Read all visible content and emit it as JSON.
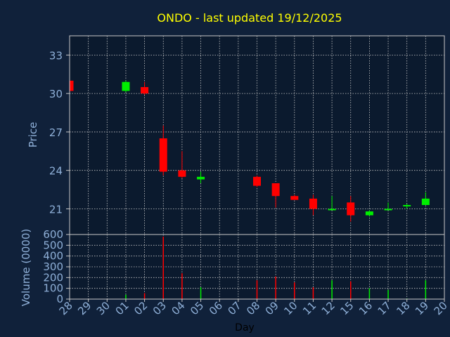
{
  "colors": {
    "background": "#10213a",
    "plot_background": "#0b1a2e",
    "grid": "#c8c8c8",
    "axis_text": "#8fb0d8",
    "title": "#ffff00",
    "up": "#00ee00",
    "down": "#ff0000"
  },
  "chart_data": [
    {
      "type": "candlestick",
      "title": "ONDO - last updated 19/12/2025",
      "ylabel": "Price",
      "ylim": [
        19,
        34.5
      ],
      "yticks": [
        "21",
        "24",
        "27",
        "30",
        "33"
      ],
      "grid": true,
      "x": [
        "28",
        "29",
        "30",
        "01",
        "02",
        "03",
        "04",
        "05",
        "06",
        "07",
        "08",
        "09",
        "10",
        "11",
        "12",
        "15",
        "16",
        "17",
        "18",
        "19",
        "20"
      ],
      "candles": [
        {
          "day": "28",
          "open": 31.0,
          "close": 30.2,
          "high": 31.0,
          "low": 30.2
        },
        {
          "day": "01",
          "open": 30.2,
          "close": 30.9,
          "high": 31.0,
          "low": 30.1
        },
        {
          "day": "02",
          "open": 30.5,
          "close": 30.0,
          "high": 30.9,
          "low": 29.9
        },
        {
          "day": "03",
          "open": 26.5,
          "close": 23.9,
          "high": 27.5,
          "low": 23.6
        },
        {
          "day": "04",
          "open": 24.0,
          "close": 23.5,
          "high": 25.5,
          "low": 23.4
        },
        {
          "day": "05",
          "open": 23.3,
          "close": 23.5,
          "high": 23.9,
          "low": 23.0
        },
        {
          "day": "08",
          "open": 23.5,
          "close": 22.8,
          "high": 23.6,
          "low": 22.7
        },
        {
          "day": "09",
          "open": 23.0,
          "close": 22.0,
          "high": 23.0,
          "low": 21.1
        },
        {
          "day": "10",
          "open": 22.0,
          "close": 21.7,
          "high": 22.1,
          "low": 21.7
        },
        {
          "day": "11",
          "open": 21.8,
          "close": 21.0,
          "high": 22.1,
          "low": 20.5
        },
        {
          "day": "12",
          "open": 20.9,
          "close": 21.0,
          "high": 22.0,
          "low": 20.9
        },
        {
          "day": "15",
          "open": 21.5,
          "close": 20.5,
          "high": 22.0,
          "low": 20.0
        },
        {
          "day": "16",
          "open": 20.5,
          "close": 20.8,
          "high": 20.9,
          "low": 20.4
        },
        {
          "day": "17",
          "open": 20.9,
          "close": 21.0,
          "high": 21.5,
          "low": 20.9
        },
        {
          "day": "18",
          "open": 21.2,
          "close": 21.3,
          "high": 21.4,
          "low": 21.0
        },
        {
          "day": "19",
          "open": 21.3,
          "close": 21.8,
          "high": 22.3,
          "low": 21.3
        }
      ]
    },
    {
      "type": "bar",
      "ylabel": "Volume (0000)",
      "xlabel": "Day",
      "ylim": [
        0,
        600
      ],
      "yticks": [
        "0",
        "100",
        "200",
        "300",
        "400",
        "500",
        "600"
      ],
      "grid": true,
      "x": [
        "28",
        "29",
        "30",
        "01",
        "02",
        "03",
        "04",
        "05",
        "06",
        "07",
        "08",
        "09",
        "10",
        "11",
        "12",
        "15",
        "16",
        "17",
        "18",
        "19",
        "20"
      ],
      "bars": [
        {
          "day": "01",
          "value": 40,
          "direction": "up"
        },
        {
          "day": "02",
          "value": 55,
          "direction": "down"
        },
        {
          "day": "03",
          "value": 580,
          "direction": "down"
        },
        {
          "day": "04",
          "value": 240,
          "direction": "down"
        },
        {
          "day": "05",
          "value": 110,
          "direction": "up"
        },
        {
          "day": "08",
          "value": 175,
          "direction": "down"
        },
        {
          "day": "09",
          "value": 210,
          "direction": "down"
        },
        {
          "day": "10",
          "value": 155,
          "direction": "down"
        },
        {
          "day": "11",
          "value": 110,
          "direction": "down"
        },
        {
          "day": "12",
          "value": 175,
          "direction": "up"
        },
        {
          "day": "15",
          "value": 165,
          "direction": "down"
        },
        {
          "day": "16",
          "value": 100,
          "direction": "up"
        },
        {
          "day": "17",
          "value": 85,
          "direction": "up"
        },
        {
          "day": "18",
          "value": 5,
          "direction": "up"
        },
        {
          "day": "19",
          "value": 175,
          "direction": "up"
        }
      ]
    }
  ]
}
